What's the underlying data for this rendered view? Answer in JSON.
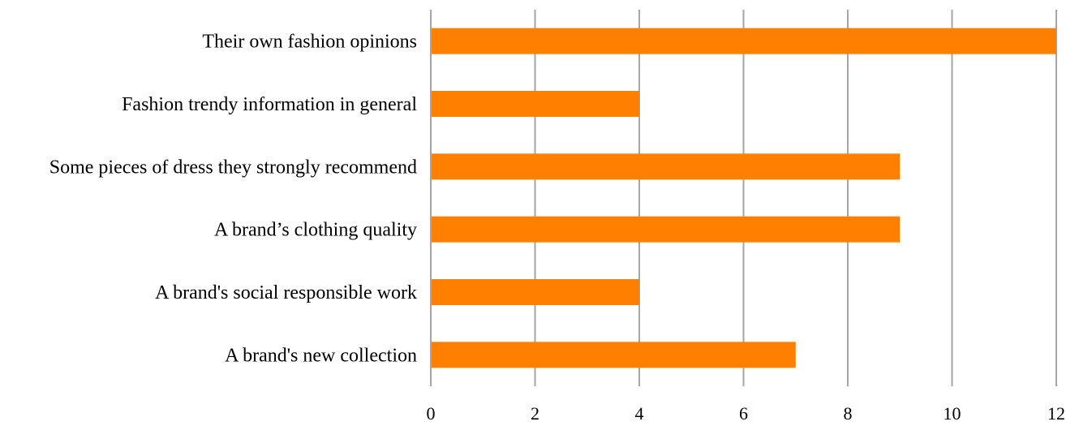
{
  "chart_data": {
    "type": "bar",
    "orientation": "horizontal",
    "categories": [
      "Their own fashion opinions",
      "Fashion trendy information in general",
      "Some pieces of dress they strongly recommend",
      "A brand’s clothing quality",
      "A brand's social responsible work",
      "A brand's new collection"
    ],
    "values": [
      12,
      4,
      9,
      9,
      4,
      7
    ],
    "xlim": [
      0,
      12
    ],
    "xticks": [
      "0",
      "2",
      "4",
      "6",
      "8",
      "10",
      "12"
    ],
    "grid": true,
    "legend": "none",
    "title": "",
    "xlabel": "",
    "ylabel": "",
    "colors": {
      "bar": "#ff7f00",
      "grid": "#a6a6a6"
    }
  }
}
